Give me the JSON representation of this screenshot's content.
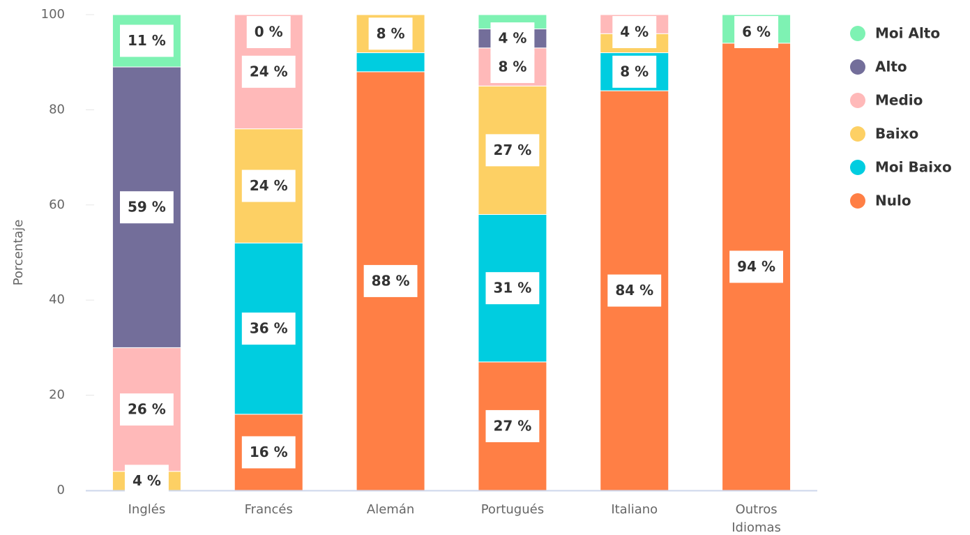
{
  "chart_data": {
    "type": "stacked_bar",
    "y_label": "Porcentaje",
    "categories": [
      "Inglés",
      "Francés",
      "Alemán",
      "Portugués",
      "Italiano",
      "Outros Idiomas"
    ],
    "ylim": [
      0,
      100
    ],
    "yticks": [
      0,
      20,
      40,
      60,
      80,
      100
    ],
    "legend": "right",
    "series": [
      {
        "name": "Nulo",
        "color": "#ff7f45",
        "values": [
          0,
          16,
          88,
          27,
          84,
          94
        ],
        "value_labels": [
          null,
          "16 %",
          "88 %",
          "27 %",
          "84 %",
          "94 %"
        ]
      },
      {
        "name": "Moi Baixo",
        "color": "#00cde0",
        "values": [
          0,
          36,
          4,
          31,
          8,
          0
        ],
        "value_labels": [
          null,
          "36 %",
          null,
          "31 %",
          "8 %",
          null
        ]
      },
      {
        "name": "Baixo",
        "color": "#fdd064",
        "values": [
          4,
          24,
          8,
          27,
          4,
          0
        ],
        "value_labels": [
          "4 %",
          "24 %",
          "8 %",
          "27 %",
          null,
          null
        ]
      },
      {
        "name": "Medio",
        "color": "#ffb9b9",
        "values": [
          26,
          24,
          0,
          8,
          4,
          0
        ],
        "value_labels": [
          "26 %",
          "24 %",
          null,
          "8 %",
          "4 %",
          null
        ]
      },
      {
        "name": "Alto",
        "color": "#736e9a",
        "values": [
          59,
          0,
          0,
          4,
          0,
          0
        ],
        "value_labels": [
          "59 %",
          null,
          null,
          "4 %",
          null,
          null
        ]
      },
      {
        "name": "Moi Alto",
        "color": "#7ef2b3",
        "values": [
          11,
          0,
          0,
          3,
          0,
          6
        ],
        "value_labels": [
          "11 %",
          "0 %",
          null,
          null,
          null,
          "6 %"
        ]
      }
    ]
  }
}
